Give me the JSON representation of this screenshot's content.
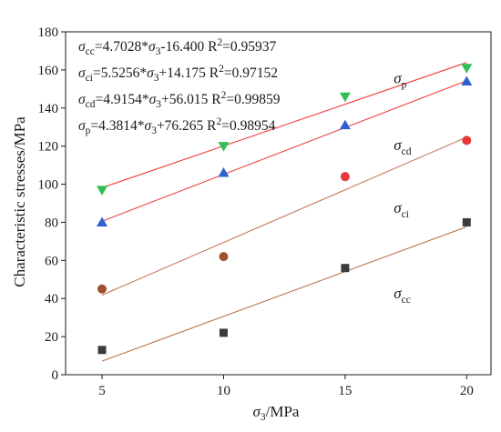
{
  "chart_data": {
    "type": "scatter",
    "xlabel": {
      "symbol": "σ",
      "sub": "3",
      "rest": "/MPa"
    },
    "ylabel": "Characteristic stresses/MPa",
    "xlim": [
      3.5,
      21
    ],
    "ylim": [
      0,
      180
    ],
    "xticks": [
      "5",
      "10",
      "15",
      "20"
    ],
    "yticks": [
      "0",
      "20",
      "40",
      "60",
      "80",
      "100",
      "120",
      "140",
      "160",
      "180"
    ],
    "x": [
      5,
      10,
      15,
      20
    ],
    "series": [
      {
        "name": "σp",
        "sub": "p",
        "marker": "triangle-down",
        "color": "#2fbf55",
        "line_color": "#ef3e3e",
        "values": [
          97,
          120,
          146,
          161
        ],
        "fit": {
          "slope": 4.3814,
          "intercept": 76.265
        }
      },
      {
        "name": "σcd",
        "sub": "cd",
        "marker": "triangle-up",
        "color": "#2f5fd3",
        "line_color": "#ef3e3e",
        "values": [
          80,
          106,
          131,
          154
        ],
        "fit": {
          "slope": 4.9154,
          "intercept": 56.015
        }
      },
      {
        "name": "σci",
        "sub": "ci",
        "marker": "circle",
        "color": "#e83838",
        "line_color": "#c4785a",
        "values": [
          45,
          62,
          104,
          123
        ],
        "fit": {
          "slope": 5.5256,
          "intercept": 14.175
        }
      },
      {
        "name": "σcc",
        "sub": "cc",
        "marker": "square",
        "color": "#3c3c3c",
        "line_color": "#b8704a",
        "values": [
          13,
          22,
          56,
          80
        ],
        "fit": {
          "slope": 4.7028,
          "intercept": -16.4
        }
      }
    ],
    "highlight_points": [
      {
        "series": "σci",
        "x": 5,
        "color": "#a0522d"
      },
      {
        "series": "σci",
        "x": 10,
        "color": "#a0522d"
      }
    ],
    "equations": [
      {
        "sub": "cc",
        "rhs": "=4.7028*",
        "tail": "-16.400",
        "r2": "=0.95937"
      },
      {
        "sub": "ci",
        "rhs": "=5.5256*",
        "tail": "+14.175",
        "r2": "=0.97152"
      },
      {
        "sub": "cd",
        "rhs": "=4.9154*",
        "tail": "+56.015",
        "r2": "=0.99859"
      },
      {
        "sub": "p",
        "rhs": "=4.3814*",
        "tail": "+76.265",
        "r2": "=0.98954"
      }
    ],
    "series_labels": [
      {
        "sub": "p",
        "at": [
          17.0,
          153
        ]
      },
      {
        "sub": "cd",
        "at": [
          17.0,
          118
        ]
      },
      {
        "sub": "ci",
        "at": [
          17.0,
          85
        ]
      },
      {
        "sub": "cc",
        "at": [
          17.0,
          40
        ]
      }
    ],
    "grid": false
  }
}
